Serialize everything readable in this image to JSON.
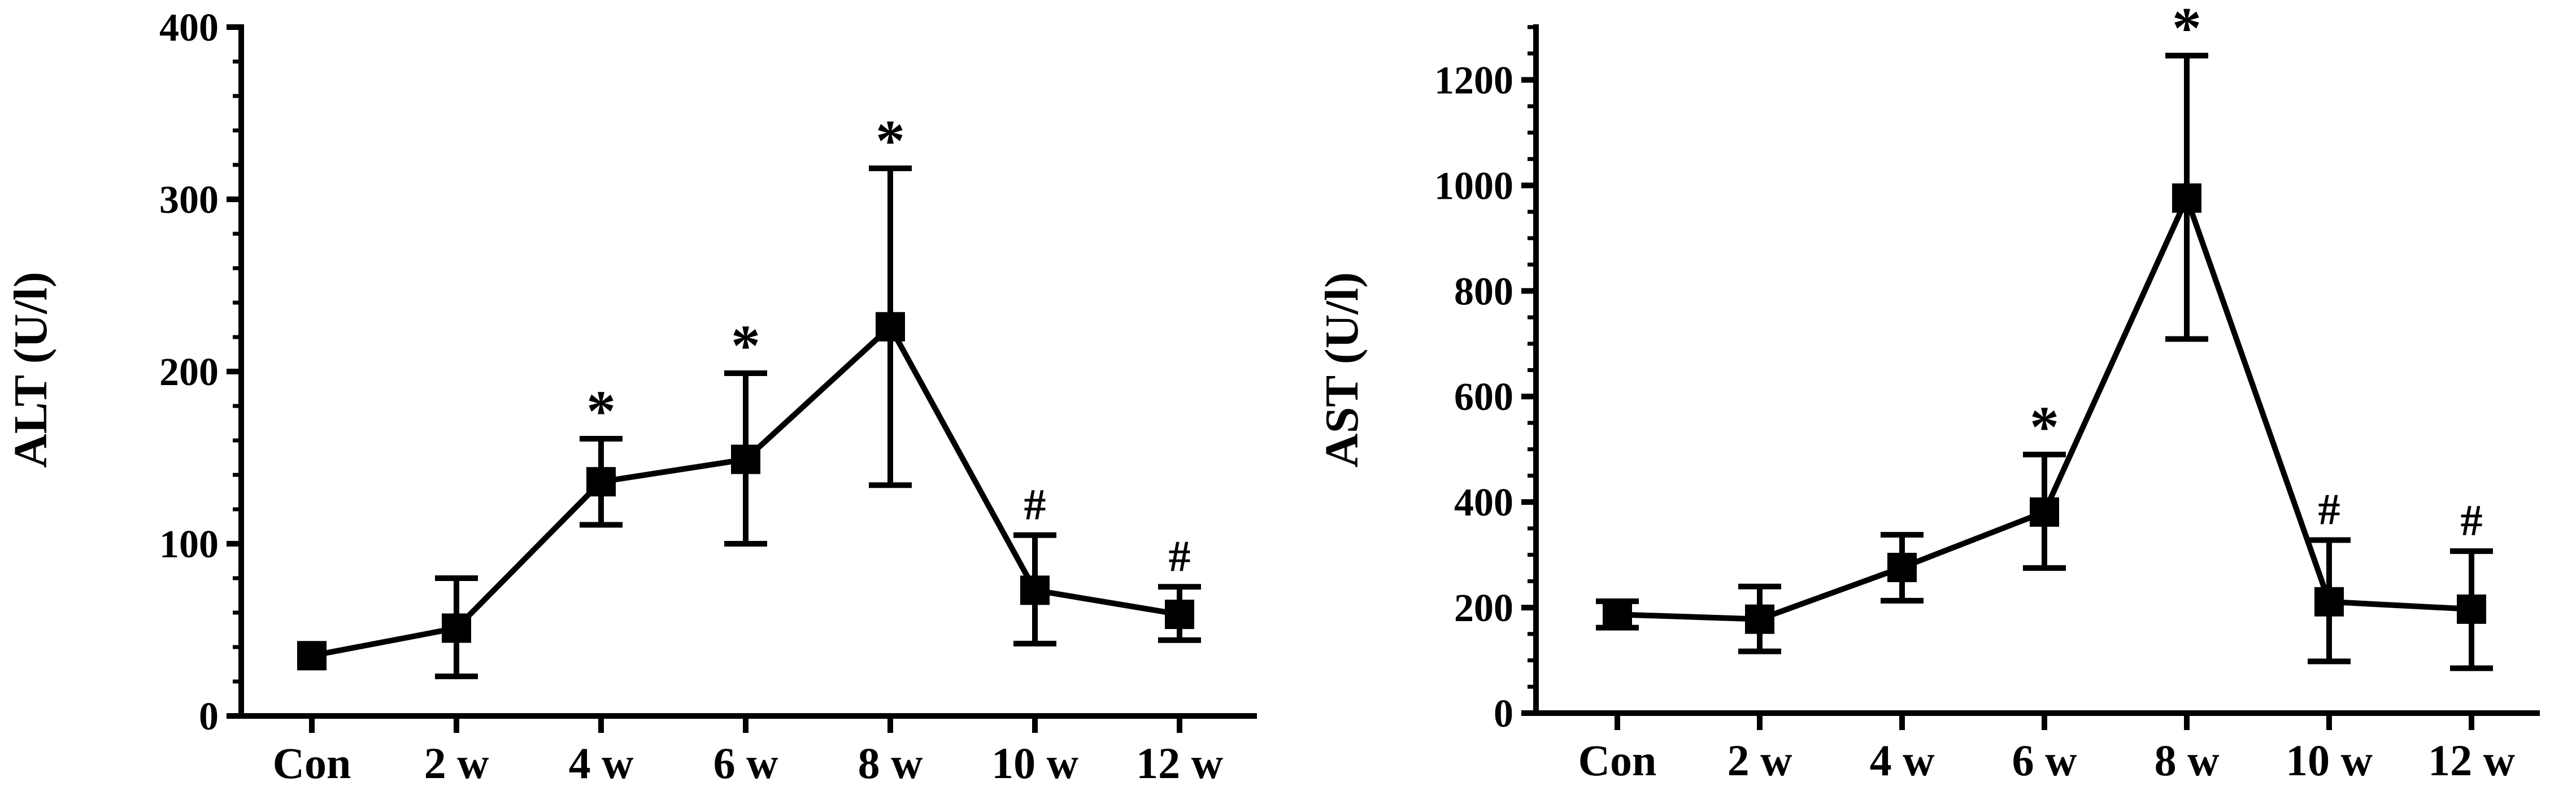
{
  "chart_data": [
    {
      "type": "line",
      "ylabel": "ALT (U/l)",
      "xlabel": "",
      "categories": [
        "Con",
        "2 w",
        "4 w",
        "6 w",
        "8 w",
        "10 w",
        "12 w"
      ],
      "ylim": [
        0,
        400
      ],
      "y_major_ticks": [
        0,
        100,
        200,
        300,
        400
      ],
      "y_major_tick_labels": [
        "0",
        "100",
        "200",
        "300",
        "400"
      ],
      "y_minor_step": 20,
      "grid": false,
      "series": [
        {
          "values": [
            35,
            51,
            136,
            149,
            226,
            73,
            59
          ],
          "error_upper": [
            35,
            80,
            161,
            199,
            318,
            105,
            75
          ],
          "error_lower": [
            35,
            23,
            111,
            100,
            134,
            42,
            44
          ],
          "annotations": [
            "",
            "",
            "*",
            "*",
            "*",
            "#",
            "#"
          ]
        }
      ]
    },
    {
      "type": "line",
      "ylabel": "AST (U/l)",
      "xlabel": "",
      "categories": [
        "Con",
        "2 w",
        "4 w",
        "6 w",
        "8 w",
        "10 w",
        "12 w"
      ],
      "ylim": [
        0,
        1300
      ],
      "y_major_ticks": [
        0,
        200,
        400,
        600,
        800,
        1000,
        1200
      ],
      "y_major_tick_labels": [
        "0",
        "200",
        "400",
        "600",
        "800",
        "1000",
        "1200"
      ],
      "y_minor_step": 50,
      "grid": false,
      "series": [
        {
          "values": [
            187,
            178,
            276,
            381,
            976,
            211,
            197
          ],
          "error_upper": [
            212,
            240,
            338,
            490,
            1246,
            328,
            307
          ],
          "error_lower": [
            162,
            117,
            213,
            275,
            709,
            98,
            85
          ],
          "annotations": [
            "",
            "",
            "",
            "*",
            "*",
            "#",
            "#"
          ]
        }
      ]
    }
  ]
}
